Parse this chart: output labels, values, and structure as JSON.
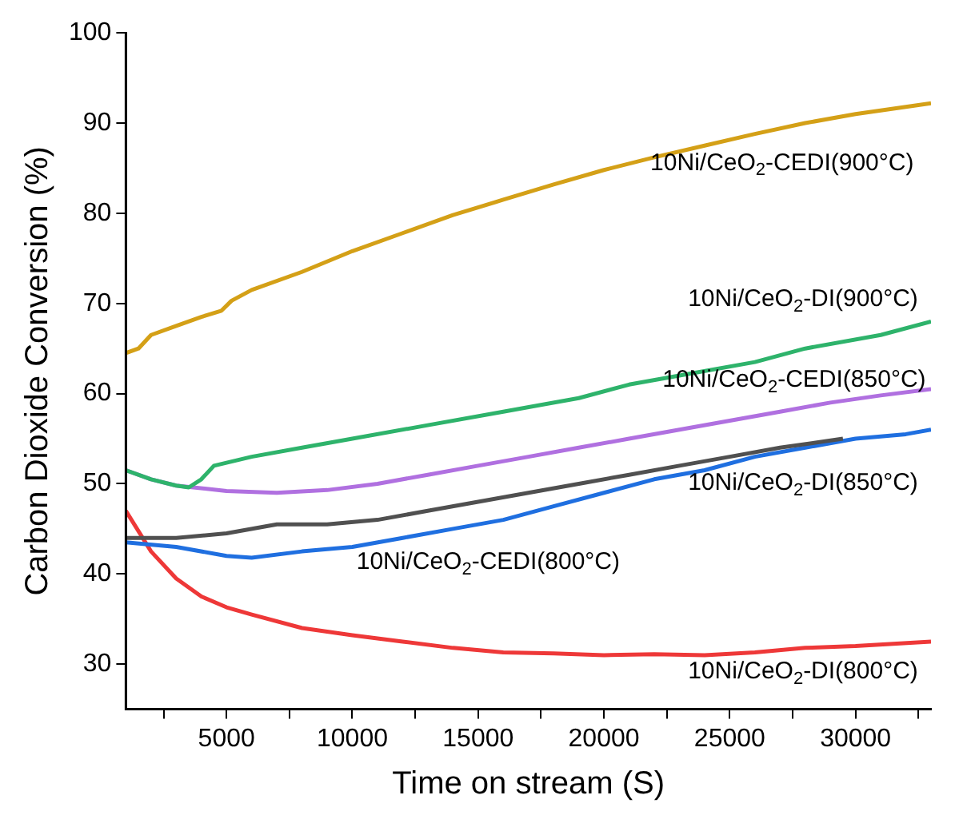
{
  "chart_data": {
    "type": "line",
    "xlabel": "Time on stream (S)",
    "ylabel": "Carbon Dioxide Conversion (%)",
    "xlim": [
      1000,
      33000
    ],
    "xticks": [
      {
        "value": 2500,
        "label": null
      },
      5000,
      {
        "value": 7500,
        "label": null
      },
      10000,
      {
        "value": 12500,
        "label": null
      },
      15000,
      {
        "value": 17500,
        "label": null
      },
      20000,
      {
        "value": 22500,
        "label": null
      },
      25000,
      {
        "value": 27500,
        "label": null
      },
      30000,
      {
        "value": 32500,
        "label": null
      }
    ],
    "ylim": [
      25,
      100
    ],
    "yticks": [
      30,
      40,
      50,
      60,
      70,
      80,
      90,
      100
    ],
    "grid": false,
    "legend": false,
    "marker": "none",
    "line_style": "solid",
    "series": [
      {
        "name": "10Ni/CeO$_{2}$-CEDI(900°C)",
        "color": "#d4a017",
        "x": [
          1000,
          1500,
          2000,
          3000,
          4000,
          4800,
          5200,
          6000,
          8000,
          10000,
          12000,
          14000,
          16000,
          18000,
          20000,
          22000,
          24000,
          26000,
          28000,
          30000,
          32000,
          33000
        ],
        "values": [
          64.5,
          65,
          66.5,
          67.5,
          68.5,
          69.2,
          70.3,
          71.5,
          73.5,
          75.8,
          77.8,
          79.8,
          81.5,
          83.2,
          84.8,
          86.2,
          87.5,
          88.8,
          90,
          91,
          91.8,
          92.2
        ]
      },
      {
        "name": "10Ni/CeO$_{2}$-DI(900°C)",
        "color": "#2eb36b",
        "x": [
          1000,
          2000,
          3000,
          3500,
          4000,
          4500,
          6000,
          8000,
          10000,
          13000,
          16000,
          19000,
          21000,
          23000,
          26000,
          28000,
          31000,
          33000
        ],
        "values": [
          51.5,
          50.5,
          49.8,
          49.6,
          50.5,
          52,
          53,
          54,
          55,
          56.5,
          58,
          59.5,
          61,
          62,
          63.5,
          65,
          66.5,
          68
        ]
      },
      {
        "name": "10Ni/CeO$_{2}$-CEDI(850°C)",
        "color": "#b070e0",
        "x": [
          1000,
          2000,
          3000,
          5000,
          7000,
          9000,
          11000,
          13000,
          15000,
          17000,
          19000,
          21000,
          23000,
          25000,
          27000,
          29000,
          31000,
          33000
        ],
        "values": [
          51.5,
          50.5,
          49.8,
          49.2,
          49,
          49.3,
          50,
          51,
          52,
          53,
          54,
          55,
          56,
          57,
          58,
          59,
          59.8,
          60.5
        ]
      },
      {
        "name": "10Ni/CeO$_{2}$-DI(850°C)",
        "color": "#505050",
        "x": [
          1000,
          3000,
          5000,
          7000,
          9000,
          11000,
          13000,
          15000,
          17000,
          19000,
          21000,
          23000,
          25000,
          27000,
          29500
        ],
        "values": [
          44,
          44,
          44.5,
          45.5,
          45.5,
          46,
          47,
          48,
          49,
          50,
          51,
          52,
          53,
          54,
          55
        ]
      },
      {
        "name": "10Ni/CeO$_{2}$-CEDI(800°C)",
        "color": "#1f6fe0",
        "x": [
          1000,
          3000,
          5000,
          6000,
          8000,
          10000,
          12000,
          14000,
          16000,
          18000,
          20000,
          22000,
          24000,
          26000,
          28000,
          30000,
          32000,
          33000
        ],
        "values": [
          43.5,
          43,
          42,
          41.8,
          42.5,
          43,
          44,
          45,
          46,
          47.5,
          49,
          50.5,
          51.5,
          53,
          54,
          55,
          55.5,
          56
        ]
      },
      {
        "name": "10Ni/CeO$_{2}$-DI(800°C)",
        "color": "#ee3838",
        "x": [
          1000,
          2000,
          3000,
          4000,
          5000,
          6000,
          8000,
          10000,
          12000,
          14000,
          16000,
          18000,
          20000,
          22000,
          24000,
          26000,
          28000,
          30000,
          33000
        ],
        "values": [
          47,
          42.5,
          39.5,
          37.5,
          36.3,
          35.5,
          34,
          33.2,
          32.5,
          31.8,
          31.3,
          31.2,
          31,
          31.1,
          31,
          31.3,
          31.8,
          32,
          32.5
        ]
      }
    ]
  }
}
